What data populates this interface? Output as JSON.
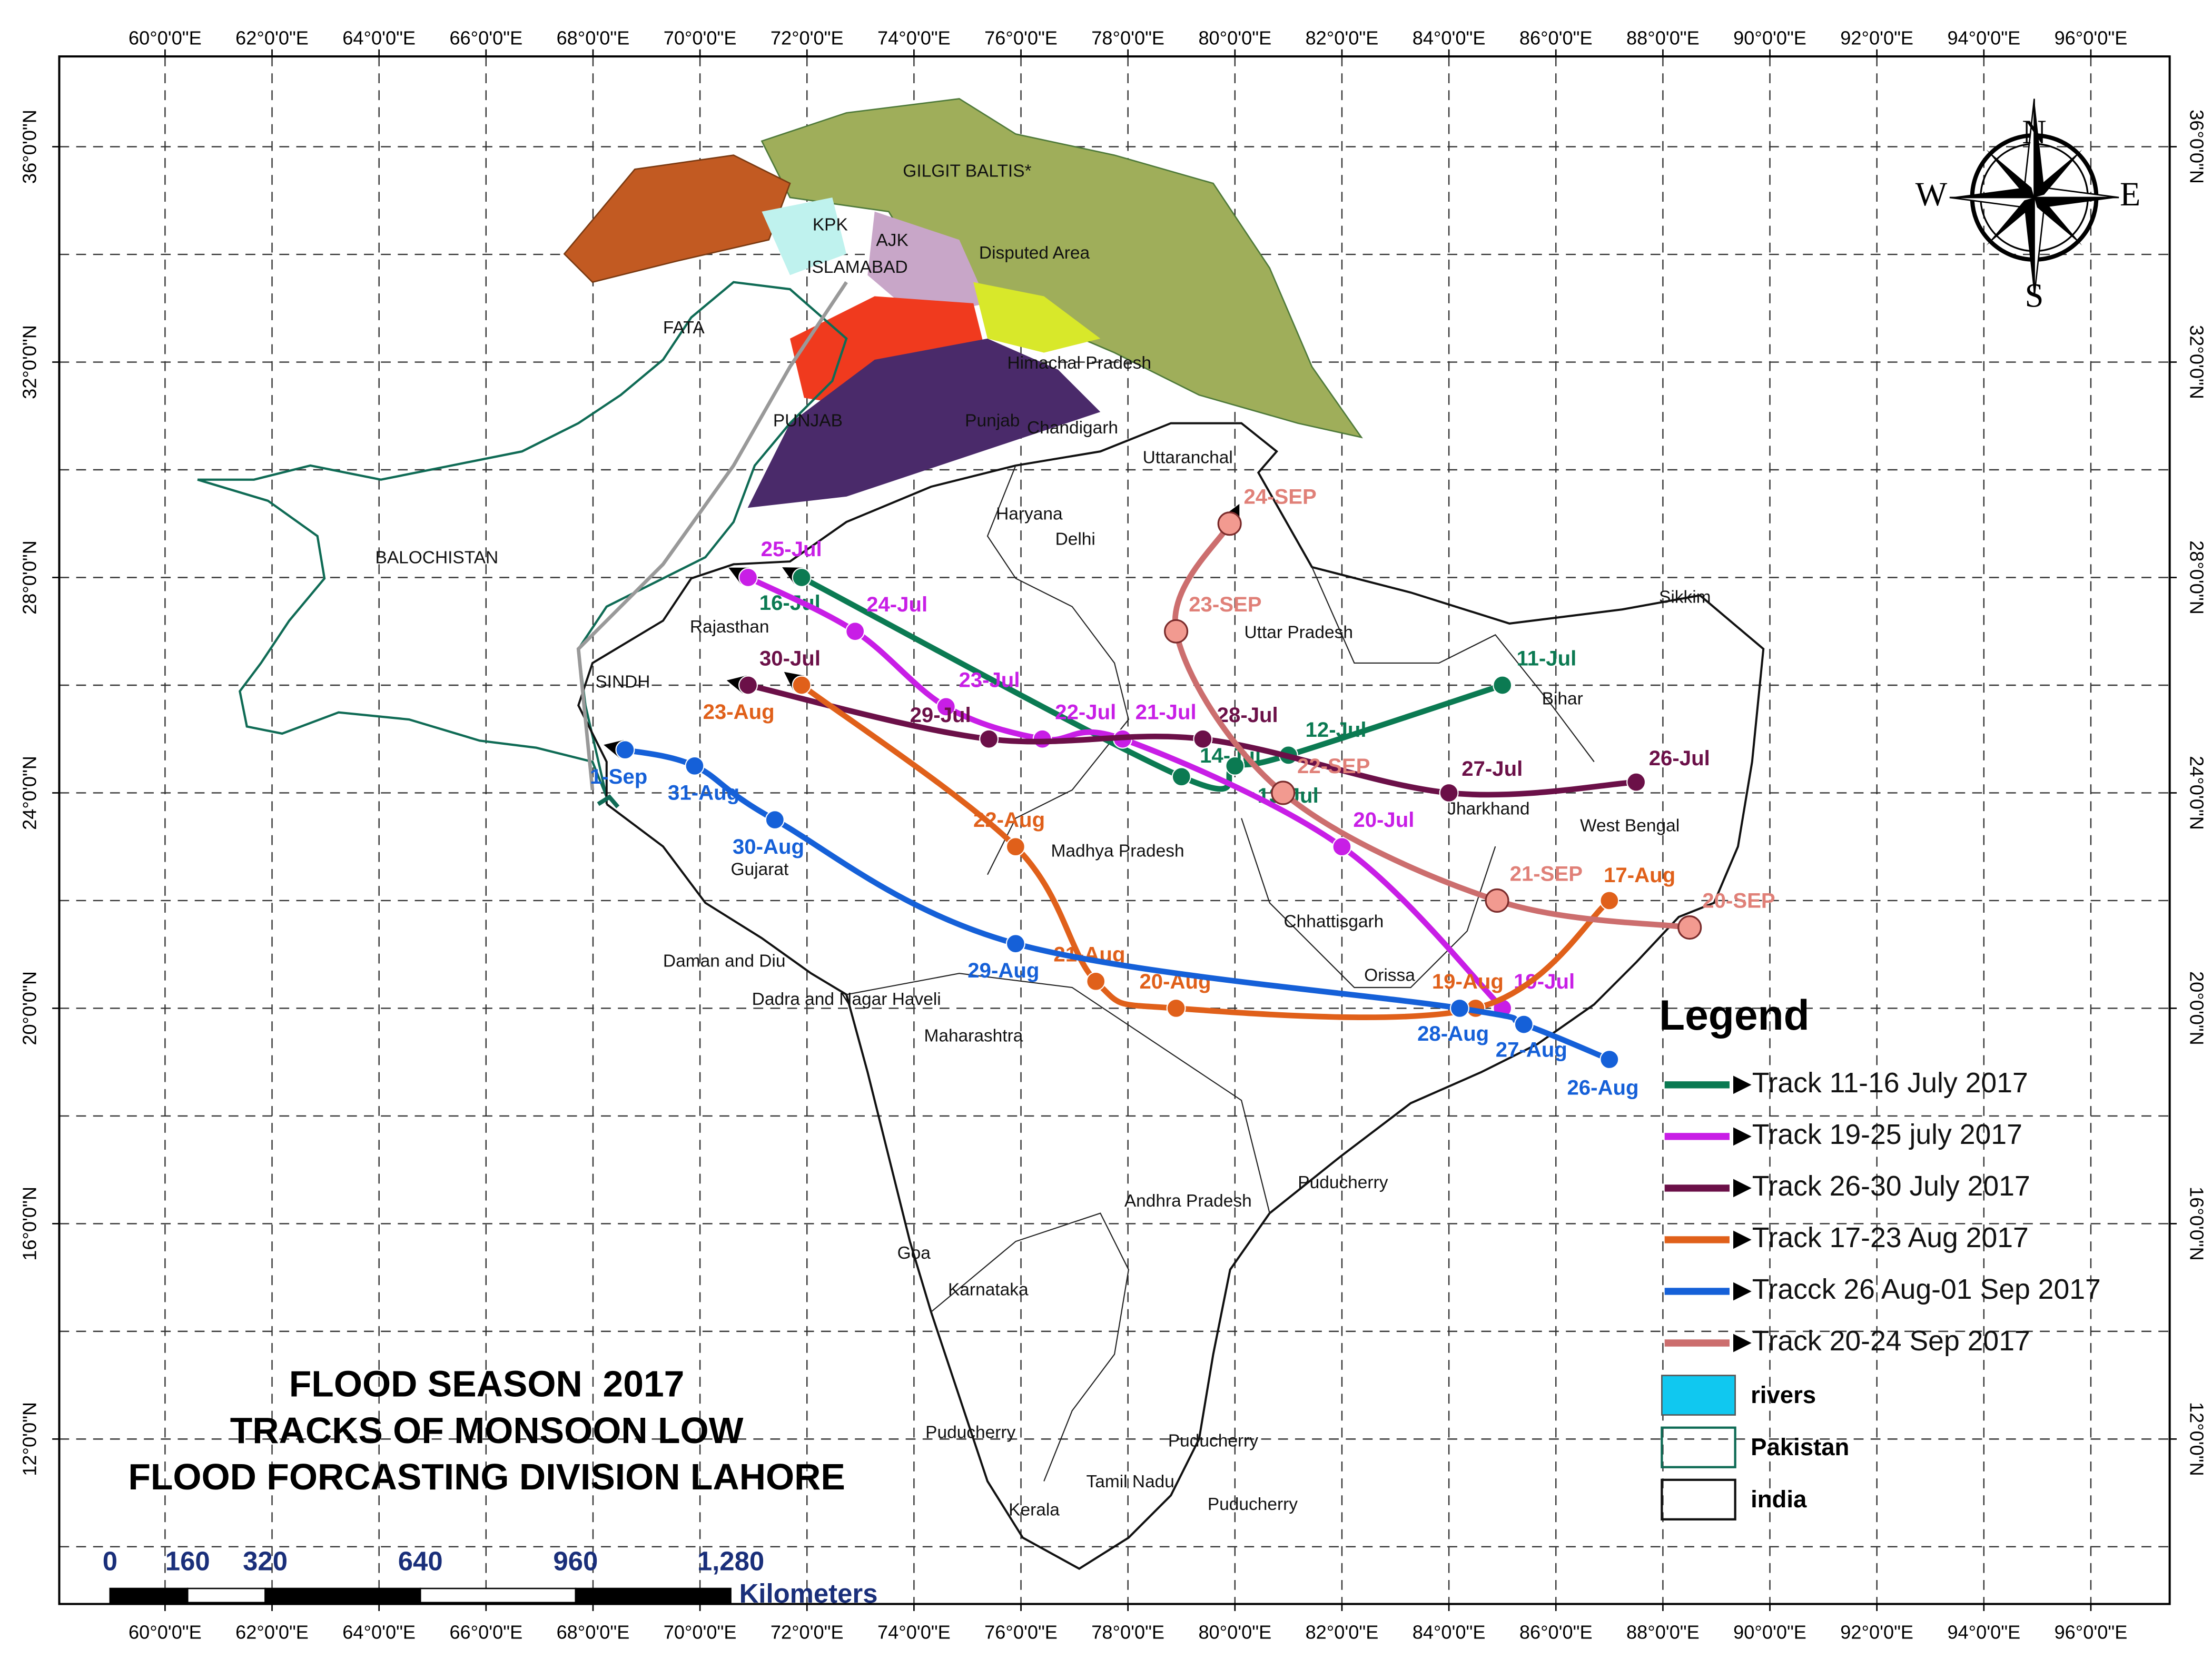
{
  "title_lines": [
    "FLOOD SEASON  2017",
    "TRACKS OF MONSOON LOW",
    "FLOOD FORCASTING DIVISION LAHORE"
  ],
  "axes": {
    "lon_ticks": [
      {
        "value": 60,
        "label": "60°0'0\"E"
      },
      {
        "value": 62,
        "label": "62°0'0\"E"
      },
      {
        "value": 64,
        "label": "64°0'0\"E"
      },
      {
        "value": 66,
        "label": "66°0'0\"E"
      },
      {
        "value": 68,
        "label": "68°0'0\"E"
      },
      {
        "value": 70,
        "label": "70°0'0\"E"
      },
      {
        "value": 72,
        "label": "72°0'0\"E"
      },
      {
        "value": 74,
        "label": "74°0'0\"E"
      },
      {
        "value": 76,
        "label": "76°0'0\"E"
      },
      {
        "value": 78,
        "label": "78°0'0\"E"
      },
      {
        "value": 80,
        "label": "80°0'0\"E"
      },
      {
        "value": 82,
        "label": "82°0'0\"E"
      },
      {
        "value": 84,
        "label": "84°0'0\"E"
      },
      {
        "value": 86,
        "label": "86°0'0\"E"
      },
      {
        "value": 88,
        "label": "88°0'0\"E"
      },
      {
        "value": 90,
        "label": "90°0'0\"E"
      },
      {
        "value": 92,
        "label": "92°0'0\"E"
      },
      {
        "value": 94,
        "label": "94°0'0\"E"
      },
      {
        "value": 96,
        "label": "96°0'0\"E"
      }
    ],
    "lat_ticks": [
      {
        "value": 36,
        "label": "36°0'0\"N"
      },
      {
        "value": 32,
        "label": "32°0'0\"N"
      },
      {
        "value": 28,
        "label": "28°0'0\"N"
      },
      {
        "value": 24,
        "label": "24°0'0\"N"
      },
      {
        "value": 20,
        "label": "20°0'0\"N"
      },
      {
        "value": 16,
        "label": "16°0'0\"N"
      },
      {
        "value": 12,
        "label": "12°0'0\"N"
      }
    ],
    "lat_grid": [
      10,
      12,
      14,
      16,
      18,
      20,
      22,
      24,
      26,
      28,
      30,
      32,
      34,
      36
    ]
  },
  "tracks": [
    {
      "name": "Track 11-16 July 2017",
      "color": "#0b7a52",
      "lon": [
        85.0,
        81.0,
        80.0,
        79.0,
        71.9
      ],
      "lat": [
        26.0,
        24.7,
        24.5,
        24.3,
        28.0
      ],
      "labels": [
        "11-Jul",
        "12-Jul",
        "13-Jul",
        "14-Jul",
        "16-Jul"
      ]
    },
    {
      "name": "Track 19-25 july 2017",
      "color": "#c81ee6",
      "lon": [
        85.0,
        82.0,
        77.9,
        76.4,
        74.6,
        72.9,
        70.9
      ],
      "lat": [
        20.0,
        23.0,
        25.0,
        25.0,
        25.6,
        27.0,
        28.0
      ],
      "labels": [
        "19-Jul",
        "20-Jul",
        "21-Jul",
        "22-Jul",
        "23-Jul",
        "24-Jul",
        "25-Jul"
      ]
    },
    {
      "name": "Track 26-30 July 2017",
      "color": "#6b1048",
      "lon": [
        87.5,
        84.0,
        79.4,
        75.4,
        70.9
      ],
      "lat": [
        24.2,
        24.0,
        25.0,
        25.0,
        26.0
      ],
      "labels": [
        "26-Jul",
        "27-Jul",
        "28-Jul",
        "29-Jul",
        "30-Jul"
      ]
    },
    {
      "name": "Track 17-23 Aug 2017",
      "color": "#e0601a",
      "lon": [
        87.0,
        84.5,
        78.9,
        77.4,
        75.9,
        71.9
      ],
      "lat": [
        22.0,
        20.0,
        20.0,
        20.5,
        23.0,
        26.0
      ],
      "labels": [
        "17-Aug",
        "19-Aug",
        "20-Aug",
        "21-Aug",
        "22-Aug",
        "23-Aug"
      ]
    },
    {
      "name": "Tracck 26 Aug-01 Sep 2017",
      "color": "#1560d8",
      "lon": [
        87.0,
        85.4,
        84.2,
        75.9,
        71.4,
        69.9,
        68.6
      ],
      "lat": [
        19.05,
        19.7,
        20.0,
        21.2,
        23.5,
        24.5,
        24.8
      ],
      "labels": [
        "26-Aug",
        "27-Aug",
        "28-Aug",
        "29-Aug",
        "30-Aug",
        "31-Aug",
        "1-Sep"
      ]
    },
    {
      "name": "Track 20-24 Sep 2017",
      "color": "#cc6e6e",
      "lon": [
        88.5,
        84.9,
        80.9,
        78.9,
        79.9
      ],
      "lat": [
        21.5,
        22.0,
        24.0,
        27.0,
        29.0
      ],
      "labels": [
        "20-SEP",
        "21-SEP",
        "22-SEP",
        "23-SEP",
        "24-SEP"
      ]
    }
  ],
  "legend": {
    "title": "Legend",
    "rivers": "rivers",
    "pakistan": "Pakistan",
    "india": "india"
  },
  "scale_bar": {
    "ticks": [
      0,
      160,
      320,
      640,
      960,
      {
        "value": 1280,
        "label": "1,280"
      }
    ],
    "unit": "Kilometers"
  },
  "compass": {
    "n": "N",
    "e": "E",
    "s": "S",
    "w": "W"
  },
  "regions": [
    "GILGIT BALTIS*",
    "KPK",
    "AJK",
    "ISLAMABAD",
    "Disputed Area",
    "FATA",
    "Himachal Pradesh",
    "PUNJAB",
    "Punjab",
    "Chandigarh",
    "Uttaranchal",
    "Haryana",
    "Delhi",
    "BALOCHISTAN",
    "Rajasthan",
    "Uttar Pradesh",
    "Sikkim",
    "SINDH",
    "Bihar",
    "Jharkhand",
    "West Bengal",
    "Madhya Pradesh",
    "Gujarat",
    "Chhattisgarh",
    "Daman and Diu",
    "Orissa",
    "Dadra and Nagar Haveli",
    "Maharashtra",
    "Puducherry",
    "Andhra Pradesh",
    "Goa",
    "Karnataka",
    "Puducherry",
    "Puducherry",
    "Tamil Nadu",
    "Kerala",
    "Puducherry"
  ]
}
